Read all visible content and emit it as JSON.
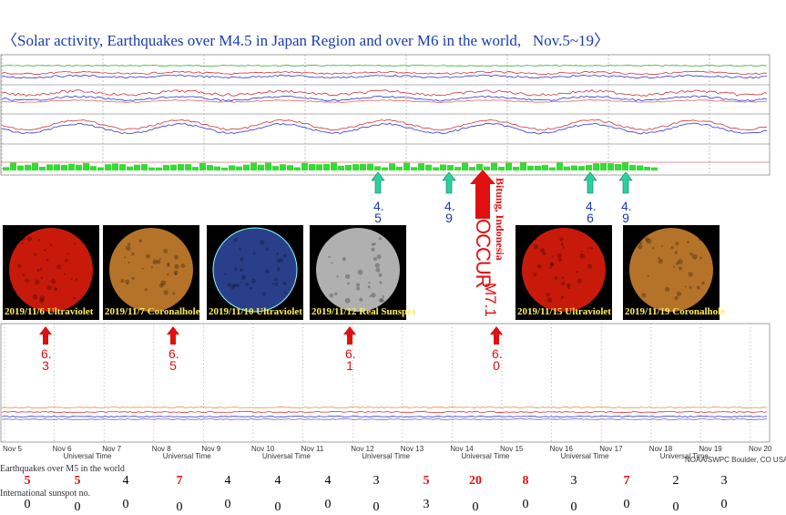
{
  "title": "〈Solar activity, Earthquakes over M4.5 in Japan Region and over M6 in the world,   Nov.5~19〉",
  "japan_quakes": [
    "4.5",
    "4.9",
    "4.6",
    "4.9"
  ],
  "world_quakes": [
    "6.3",
    "6.5",
    "6.1",
    "6.0"
  ],
  "major_quake": {
    "note": "OCCUR",
    "label": "M7.1",
    "place": "Bitung, Indonesia"
  },
  "sun_images": [
    {
      "caption": "2019/11/6 Ultraviolet",
      "color": "#c81a0a"
    },
    {
      "caption": "2019/11/7 Coronalhole",
      "color": "#b5732a"
    },
    {
      "caption": "2019/11/10 Ultraviolet",
      "color": "#2a3f8a"
    },
    {
      "caption": "2019/11/12 Real Sunspot",
      "color": "#b0b0b0"
    },
    {
      "caption": "2019/11/15 Ultraviolet",
      "color": "#c81a0a"
    },
    {
      "caption": "2019/11/19 Coronalhole",
      "color": "#b5732a"
    }
  ],
  "xray_axis": {
    "dates": [
      "Nov 5",
      "Nov 6",
      "Nov 7",
      "Nov 8",
      "Nov 9",
      "Nov 10",
      "Nov 11",
      "Nov 12",
      "Nov 13",
      "Nov 14",
      "Nov 15",
      "Nov 16",
      "Nov 17",
      "Nov 18",
      "Nov 19",
      "Nov 20"
    ],
    "axis_title": "Universal Time",
    "credit": "NOAA/SWPC Boulder, CO USA"
  },
  "earthquake_row": {
    "label": "Earthquakes over M5 in the world",
    "values": [
      5,
      5,
      4,
      7,
      4,
      4,
      4,
      3,
      5,
      20,
      8,
      3,
      7,
      2,
      3
    ],
    "colors": [
      "#e01010",
      "#e01010",
      "#000000",
      "#e01010",
      "#000000",
      "#000000",
      "#000000",
      "#000000",
      "#e01010",
      "#e01010",
      "#e01010",
      "#000000",
      "#e01010",
      "#000000",
      "#000000"
    ]
  },
  "sunspot_row": {
    "label": "International sunspot no.",
    "values": [
      0,
      0,
      0,
      0,
      0,
      0,
      0,
      0,
      3,
      0,
      0,
      0,
      0,
      0,
      0
    ]
  }
}
